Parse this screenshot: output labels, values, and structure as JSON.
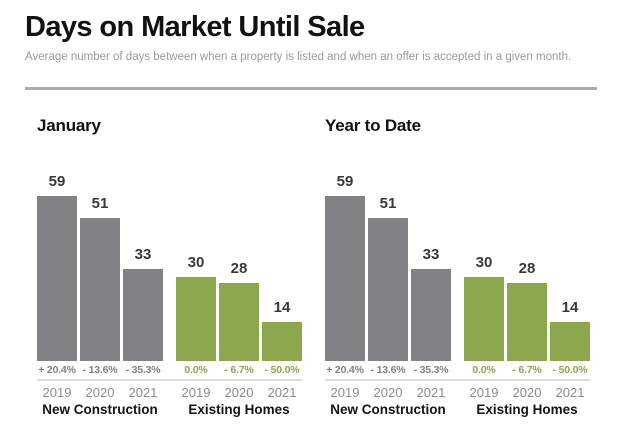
{
  "header": {
    "title": "Days on Market Until Sale",
    "subtitle": "Average number of days between when a property is listed and when an offer is accepted in a given month."
  },
  "colors": {
    "new_construction": "#818285",
    "existing_homes": "#8ca74e",
    "value_label": "#38383a",
    "year_label": "#8a8c8f",
    "group_label": "#141414"
  },
  "chart_data": [
    {
      "type": "bar",
      "title": "January",
      "ylim": [
        0,
        64
      ],
      "grid": false,
      "legend": "none",
      "categories": [
        "2019",
        "2020",
        "2021"
      ],
      "series": [
        {
          "name": "New Construction",
          "color_key": "new_construction",
          "values": [
            59,
            51,
            33
          ],
          "pct_change": [
            "+ 20.4%",
            "- 13.6%",
            "- 35.3%"
          ]
        },
        {
          "name": "Existing Homes",
          "color_key": "existing_homes",
          "values": [
            30,
            28,
            14
          ],
          "pct_change": [
            "0.0%",
            "- 6.7%",
            "- 50.0%"
          ]
        }
      ]
    },
    {
      "type": "bar",
      "title": "Year to Date",
      "ylim": [
        0,
        64
      ],
      "grid": false,
      "legend": "none",
      "categories": [
        "2019",
        "2020",
        "2021"
      ],
      "series": [
        {
          "name": "New Construction",
          "color_key": "new_construction",
          "values": [
            59,
            51,
            33
          ],
          "pct_change": [
            "+ 20.4%",
            "- 13.6%",
            "- 35.3%"
          ]
        },
        {
          "name": "Existing Homes",
          "color_key": "existing_homes",
          "values": [
            30,
            28,
            14
          ],
          "pct_change": [
            "0.0%",
            "- 6.7%",
            "- 50.0%"
          ]
        }
      ]
    }
  ]
}
